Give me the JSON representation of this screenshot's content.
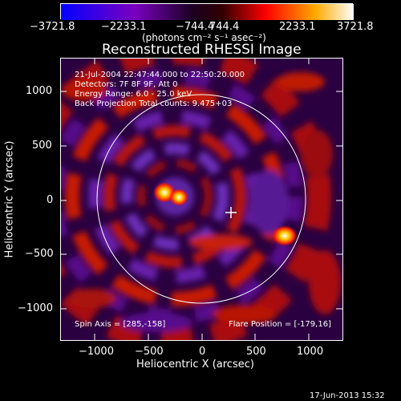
{
  "colorbar": {
    "ticks": [
      "−3721.8",
      "−2233.1",
      "−744.4",
      "744.4",
      "2233.1",
      "3721.8"
    ],
    "units": "(photons cm⁻² s⁻¹ asec⁻²)"
  },
  "image": {
    "title": "Reconstructed RHESSI Image",
    "info_lines": [
      "21-Jul-2004 22:47:44.000 to 22:50:20.000",
      "Detectors: 7F 8F 9F, Att 0",
      "Energy Range: 6.0 - 25.0 keV",
      "Back Projection      Total counts: 9.475+03"
    ],
    "spin_axis": "Spin Axis = [285,-158]",
    "flare_position": "Flare Position = [-179,16]"
  },
  "axes": {
    "xlabel": "Heliocentric X (arcsec)",
    "ylabel": "Heliocentric Y (arcsec)",
    "xticks": [
      "−1000",
      "−500",
      "0",
      "500",
      "1000"
    ],
    "yticks": [
      "1000",
      "500",
      "0",
      "−500",
      "−1000"
    ]
  },
  "footer": {
    "timestamp": "17-Jun-2013 15:32"
  }
}
